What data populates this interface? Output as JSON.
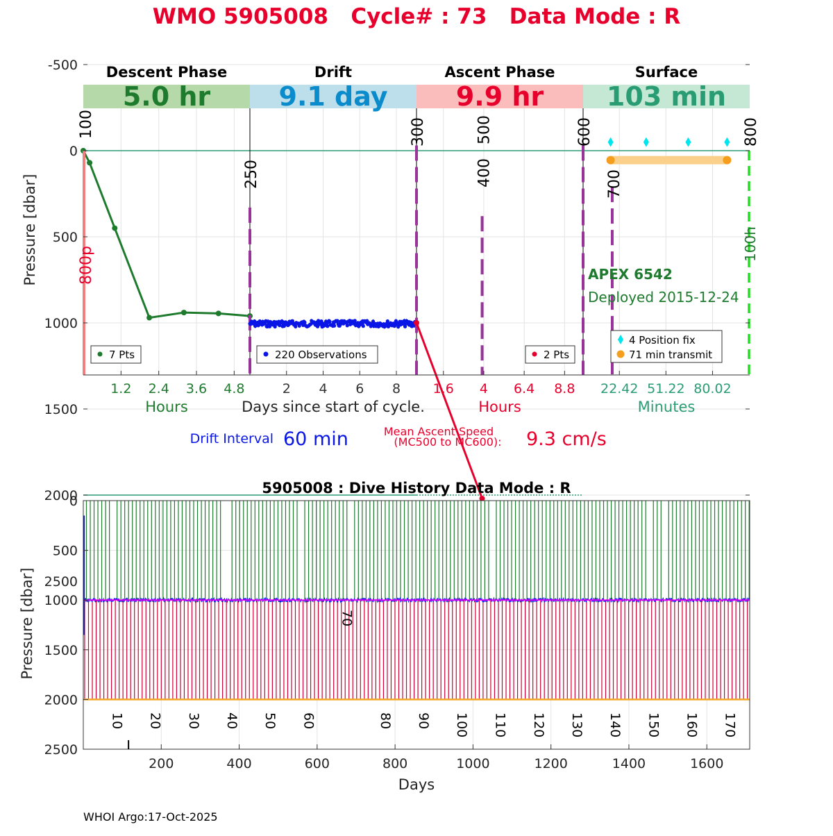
{
  "header": {
    "title": "WMO 5905008   Cycle# : 73   Data Mode : R",
    "title_color": "#e8002d"
  },
  "colors": {
    "descent": "#1e7b2e",
    "descent_band": "#b5d9a8",
    "drift": "#0a16e6",
    "drift_band": "#bcdfeb",
    "drift_text": "#0a8ccc",
    "ascent": "#e8002d",
    "ascent_band": "#fbbcbc",
    "surface_text": "#2a9c73",
    "surface_band": "#c4e8d4",
    "mission": "#993399",
    "fix": "#00e5ee",
    "transmit": "#f59d1d",
    "transmit_band": "#fbd08a",
    "ref_line": "#2a9c73",
    "green_dash": "#22dd22",
    "history_up": "#1e7b2e",
    "history_down": "#cc0033",
    "history_park": "#ff00ff",
    "history_bottom": "#f5a623"
  },
  "chart_data": [
    {
      "type": "line",
      "ylabel": "Pressure [dbar]",
      "xlabel": "Days since start of cycle.",
      "ylim": [
        2600,
        -600
      ],
      "y_ticks": [
        "-500",
        "0",
        "500",
        "1000",
        "1500",
        "2000",
        "2500"
      ],
      "reference_lines": [
        0,
        2000
      ],
      "phases": [
        {
          "id": "descent",
          "name": "Descent Phase",
          "duration": "5.0 hr",
          "unit_label": "Hours",
          "xlim": [
            0,
            5.3
          ],
          "tick_labels": [
            "1.2",
            "2.4",
            "3.6",
            "4.8"
          ],
          "tick_values": [
            1.2,
            2.4,
            3.6,
            4.8
          ],
          "legend": "7 Pts",
          "x": [
            0,
            0.2,
            1.0,
            2.1,
            3.2,
            4.3,
            5.3
          ],
          "y": [
            0,
            70,
            450,
            970,
            940,
            945,
            960
          ],
          "mission_markers": [
            {
              "label": "100",
              "x": 0
            },
            {
              "label": "250",
              "x": 5.3
            }
          ],
          "side_label": "800p"
        },
        {
          "id": "drift",
          "name": "Drift",
          "duration": "9.1 day",
          "unit_label": "",
          "xlim": [
            0,
            9.1
          ],
          "tick_labels": [
            "2",
            "4",
            "6",
            "8"
          ],
          "tick_values": [
            2,
            4,
            6,
            8
          ],
          "legend": "220 Observations",
          "n_points": 220,
          "park_level": 1005,
          "mission_markers": [
            {
              "label": "300",
              "x": 9.1
            }
          ]
        },
        {
          "id": "ascent",
          "name": "Ascent Phase",
          "duration": "9.9 hr",
          "unit_label": "Hours",
          "xlim": [
            0,
            9.9
          ],
          "tick_labels": [
            "1.6",
            "4",
            "6.4",
            "8.8"
          ],
          "tick_values": [
            1.6,
            4.0,
            6.4,
            8.8
          ],
          "legend": "2 Pts",
          "x": [
            0,
            3.9
          ],
          "y": [
            1000,
            2020
          ],
          "mission_markers": [
            {
              "label": "500",
              "x": 3.9
            },
            {
              "label": "400",
              "x": 3.9
            },
            {
              "label": "600",
              "x": 9.9
            }
          ]
        },
        {
          "id": "surface",
          "name": "Surface",
          "duration": "103 min",
          "unit_label": "Minutes",
          "xlim": [
            0,
            103
          ],
          "tick_labels": [
            "22.42",
            "51.22",
            "80.02"
          ],
          "tick_values": [
            22.42,
            51.22,
            80.02
          ],
          "legend_items": [
            "4 Position fix",
            "71 min transmit"
          ],
          "position_fix_x": [
            17,
            39,
            65,
            89
          ],
          "position_fix_y": -50,
          "transmit_x": [
            17,
            89
          ],
          "transmit_y": 55,
          "mission_markers": [
            {
              "label": "700",
              "x": 18
            },
            {
              "label": "800",
              "x": 103
            }
          ],
          "side_label": "100h",
          "annotation_title": "APEX 6542",
          "annotation_text": "Deployed 2015-12-24"
        }
      ]
    },
    {
      "type": "line",
      "title": "5905008 : Dive History      Data Mode : R",
      "xlabel": "Days",
      "ylabel": "Pressure [dbar]",
      "xlim": [
        0,
        1710
      ],
      "ylim": [
        2500,
        0
      ],
      "x_ticks": [
        200,
        400,
        600,
        800,
        1000,
        1200,
        1400,
        1600
      ],
      "y_ticks": [
        0,
        500,
        1000,
        1500,
        2000,
        2500
      ],
      "n_cycles": 174,
      "cycle_interval_days": 9.83,
      "park_pressure": 1000,
      "profile_pressure": 2000,
      "cycle_labels": [
        "10",
        "20",
        "30",
        "40",
        "50",
        "60",
        "70",
        "80",
        "90",
        "100",
        "110",
        "120",
        "130",
        "140",
        "150",
        "160",
        "170"
      ],
      "cycle_label_days": [
        88,
        186,
        285,
        383,
        481,
        580,
        678,
        777,
        875,
        973,
        1071,
        1170,
        1268,
        1366,
        1465,
        1563,
        1661
      ],
      "missing_up_cycles": [
        8,
        37,
        38,
        57,
        70,
        107,
        148,
        152
      ]
    }
  ],
  "drift_info": {
    "label": "Drift Interval",
    "value": "60 min"
  },
  "ascent_speed": {
    "label_line1": "Mean Ascent Speed",
    "label_line2": "(MC500 to MC600):",
    "value": "9.3 cm/s"
  },
  "footer": {
    "text": "WHOI Argo:17-Oct-2025"
  }
}
